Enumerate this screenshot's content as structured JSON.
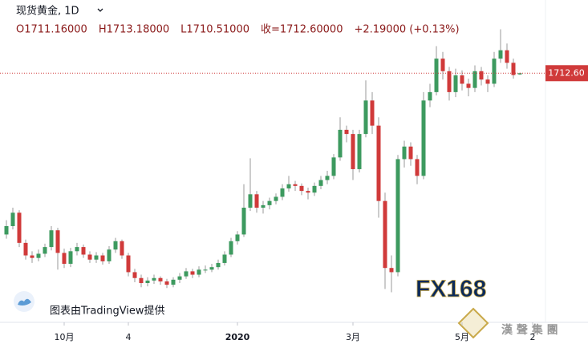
{
  "chart_data": {
    "type": "candlestick",
    "title": "现货黄金, 1D",
    "ohlc_text": [
      "O1711.16000",
      "H1713.18000",
      "L1710.51000",
      "收=1712.60000",
      "+2.19000 (+0.13%)"
    ],
    "last_price_label": "1712.60",
    "credit": "图表由TradingView提供",
    "logo": "FX168",
    "watermark": "漢 聲 集 團",
    "up_color": "#3d9a5f",
    "down_color": "#d03a3a",
    "wick_color": "#9a9a9a",
    "price_line_color": "#d03a3a",
    "xlim": [
      -1,
      90.625
    ],
    "ylim": [
      1417,
      1800
    ],
    "xticks": [
      {
        "value": 9,
        "label": "10月"
      },
      {
        "value": 19,
        "label": "4"
      },
      {
        "value": 36,
        "label": "2020"
      },
      {
        "value": 54,
        "label": "3月"
      },
      {
        "value": 71,
        "label": "5月"
      },
      {
        "value": 82,
        "label": "2"
      }
    ],
    "candles": [
      [
        1520,
        1537,
        1515,
        1530
      ],
      [
        1530,
        1552,
        1526,
        1546
      ],
      [
        1546,
        1549,
        1505,
        1510
      ],
      [
        1510,
        1514,
        1490,
        1495
      ],
      [
        1495,
        1500,
        1486,
        1492
      ],
      [
        1492,
        1502,
        1488,
        1497
      ],
      [
        1497,
        1509,
        1493,
        1505
      ],
      [
        1505,
        1530,
        1501,
        1525
      ],
      [
        1525,
        1528,
        1478,
        1498
      ],
      [
        1498,
        1503,
        1480,
        1485
      ],
      [
        1485,
        1504,
        1481,
        1500
      ],
      [
        1500,
        1510,
        1495,
        1505
      ],
      [
        1505,
        1508,
        1492,
        1496
      ],
      [
        1496,
        1500,
        1486,
        1490
      ],
      [
        1490,
        1499,
        1486,
        1495
      ],
      [
        1495,
        1498,
        1484,
        1488
      ],
      [
        1488,
        1506,
        1485,
        1502
      ],
      [
        1502,
        1516,
        1498,
        1512
      ],
      [
        1512,
        1514,
        1491,
        1495
      ],
      [
        1495,
        1498,
        1470,
        1475
      ],
      [
        1475,
        1479,
        1463,
        1468
      ],
      [
        1468,
        1472,
        1457,
        1462
      ],
      [
        1462,
        1469,
        1458,
        1465
      ],
      [
        1465,
        1472,
        1461,
        1468
      ],
      [
        1468,
        1470,
        1460,
        1464
      ],
      [
        1464,
        1467,
        1456,
        1460
      ],
      [
        1460,
        1469,
        1457,
        1466
      ],
      [
        1466,
        1474,
        1462,
        1470
      ],
      [
        1470,
        1480,
        1467,
        1476
      ],
      [
        1476,
        1479,
        1468,
        1472
      ],
      [
        1472,
        1482,
        1469,
        1478
      ],
      [
        1477,
        1483,
        1474,
        1478
      ],
      [
        1478,
        1485,
        1475,
        1481
      ],
      [
        1481,
        1490,
        1478,
        1486
      ],
      [
        1486,
        1500,
        1483,
        1496
      ],
      [
        1496,
        1516,
        1493,
        1512
      ],
      [
        1512,
        1524,
        1508,
        1520
      ],
      [
        1520,
        1580,
        1517,
        1552
      ],
      [
        1552,
        1611,
        1548,
        1568
      ],
      [
        1568,
        1572,
        1546,
        1552
      ],
      [
        1552,
        1560,
        1545,
        1555
      ],
      [
        1555,
        1564,
        1550,
        1560
      ],
      [
        1560,
        1569,
        1556,
        1565
      ],
      [
        1565,
        1580,
        1561,
        1575
      ],
      [
        1575,
        1590,
        1571,
        1580
      ],
      [
        1580,
        1584,
        1572,
        1578
      ],
      [
        1578,
        1581,
        1567,
        1572
      ],
      [
        1572,
        1576,
        1562,
        1570
      ],
      [
        1570,
        1582,
        1566,
        1578
      ],
      [
        1578,
        1590,
        1574,
        1585
      ],
      [
        1585,
        1596,
        1580,
        1590
      ],
      [
        1590,
        1616,
        1586,
        1612
      ],
      [
        1612,
        1660,
        1608,
        1645
      ],
      [
        1645,
        1650,
        1630,
        1640
      ],
      [
        1640,
        1645,
        1585,
        1598
      ],
      [
        1598,
        1645,
        1594,
        1640
      ],
      [
        1640,
        1704,
        1636,
        1680
      ],
      [
        1680,
        1690,
        1640,
        1650
      ],
      [
        1650,
        1660,
        1540,
        1560
      ],
      [
        1560,
        1570,
        1455,
        1480
      ],
      [
        1480,
        1495,
        1451,
        1475
      ],
      [
        1475,
        1615,
        1470,
        1610
      ],
      [
        1610,
        1632,
        1600,
        1625
      ],
      [
        1625,
        1630,
        1602,
        1610
      ],
      [
        1610,
        1615,
        1580,
        1590
      ],
      [
        1590,
        1690,
        1586,
        1680
      ],
      [
        1680,
        1700,
        1672,
        1690
      ],
      [
        1690,
        1745,
        1686,
        1730
      ],
      [
        1730,
        1738,
        1705,
        1715
      ],
      [
        1715,
        1720,
        1680,
        1690
      ],
      [
        1690,
        1718,
        1684,
        1710
      ],
      [
        1710,
        1716,
        1692,
        1700
      ],
      [
        1700,
        1706,
        1685,
        1695
      ],
      [
        1695,
        1722,
        1690,
        1715
      ],
      [
        1715,
        1720,
        1698,
        1705
      ],
      [
        1705,
        1710,
        1690,
        1700
      ],
      [
        1700,
        1738,
        1696,
        1730
      ],
      [
        1730,
        1765,
        1725,
        1740
      ],
      [
        1740,
        1748,
        1718,
        1725
      ],
      [
        1725,
        1730,
        1706,
        1710.41
      ],
      [
        1711.16,
        1713.18,
        1710.51,
        1712.6
      ]
    ]
  }
}
